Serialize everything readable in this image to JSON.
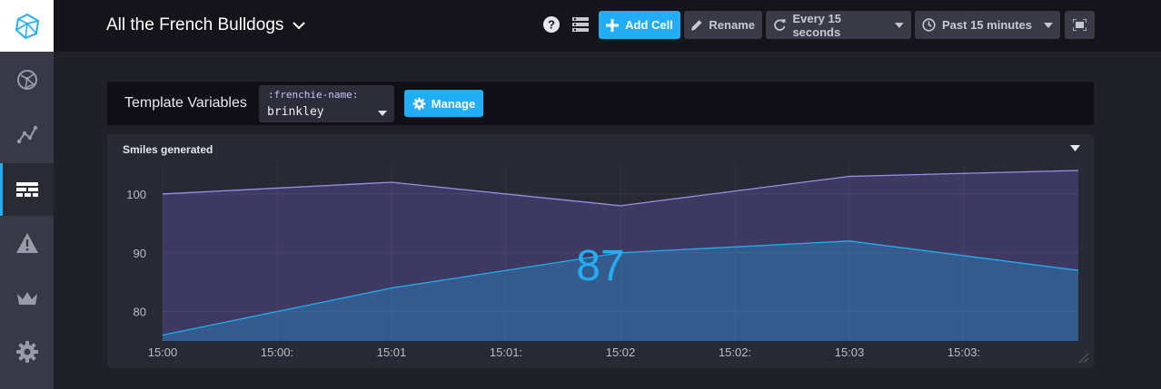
{
  "sidebar": {
    "items": [
      {
        "name": "host-list",
        "icon": "globe-network-icon"
      },
      {
        "name": "data-explorer",
        "icon": "graph-icon"
      },
      {
        "name": "dashboards",
        "icon": "dashboards-grid-icon",
        "active": true
      },
      {
        "name": "alerting",
        "icon": "alert-icon"
      },
      {
        "name": "admin",
        "icon": "crown-icon"
      },
      {
        "name": "configuration",
        "icon": "gear-icon"
      }
    ]
  },
  "header": {
    "title": "All the French Bulldogs",
    "add_cell_label": "Add Cell",
    "rename_label": "Rename",
    "refresh_label": "Every 15 seconds",
    "range_label": "Past 15 minutes"
  },
  "template_vars": {
    "label": "Template Variables",
    "var_name": ":frenchie-name:",
    "var_value": "brinkley",
    "manage_label": "Manage"
  },
  "cell": {
    "title": "Smiles generated",
    "big_value": "87"
  },
  "colors": {
    "accent": "#22adf6",
    "series_upper": "#9c8ff0",
    "series_lower": "#22adf6"
  },
  "chart_data": {
    "type": "area",
    "x": [
      "15:00",
      "15:01",
      "15:02",
      "15:03",
      "15:04"
    ],
    "x_tick_labels": [
      "15:00",
      "15:00:",
      "15:01",
      "15:01:",
      "15:02",
      "15:02:",
      "15:03",
      "15:03:"
    ],
    "y_tick_labels": [
      "100",
      "90",
      "80"
    ],
    "ylim": [
      75,
      104
    ],
    "grid": true,
    "series": [
      {
        "values": [
          100,
          102,
          98,
          103,
          104
        ]
      },
      {
        "values": [
          76,
          84,
          90,
          92,
          87
        ]
      }
    ]
  }
}
